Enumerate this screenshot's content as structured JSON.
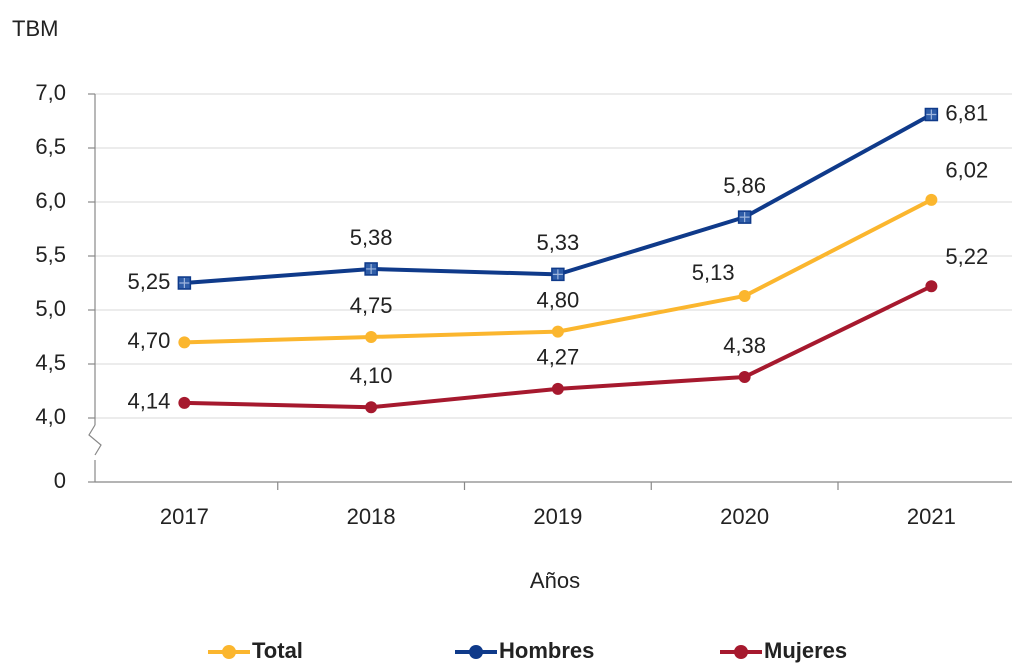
{
  "chart_data": {
    "type": "line",
    "y_label": "TBM",
    "x_label": "Años",
    "categories": [
      "2017",
      "2018",
      "2019",
      "2020",
      "2021"
    ],
    "series": [
      {
        "name": "Total",
        "color": "#fbb62e",
        "marker": "circle",
        "values": [
          4.7,
          4.75,
          4.8,
          5.13,
          6.02
        ],
        "value_labels": [
          "4,70",
          "4,75",
          "4,80",
          "5,13",
          "6,02"
        ]
      },
      {
        "name": "Hombres",
        "color": "#0f3a8a",
        "marker": "square",
        "values": [
          5.25,
          5.38,
          5.33,
          5.86,
          6.81
        ],
        "value_labels": [
          "5,25",
          "5,38",
          "5,33",
          "5,86",
          "6,81"
        ]
      },
      {
        "name": "Mujeres",
        "color": "#a6192e",
        "marker": "circle",
        "values": [
          4.14,
          4.1,
          4.27,
          4.38,
          5.22
        ],
        "value_labels": [
          "4,14",
          "4,10",
          "4,27",
          "4,38",
          "5,22"
        ]
      }
    ],
    "ylim": [
      0,
      7.0
    ],
    "yticks": [
      0,
      {
        "value": 4.0,
        "label": "4,0"
      },
      {
        "value": 4.5,
        "label": "4,5"
      },
      {
        "value": 5.0,
        "label": "5,0"
      },
      {
        "value": 5.5,
        "label": "5,5"
      },
      {
        "value": 6.0,
        "label": "6,0"
      },
      {
        "value": 6.5,
        "label": "6,5"
      },
      {
        "value": 7.0,
        "label": "7,0"
      }
    ],
    "axis_break": true,
    "grid": true,
    "legend": "bottom"
  }
}
